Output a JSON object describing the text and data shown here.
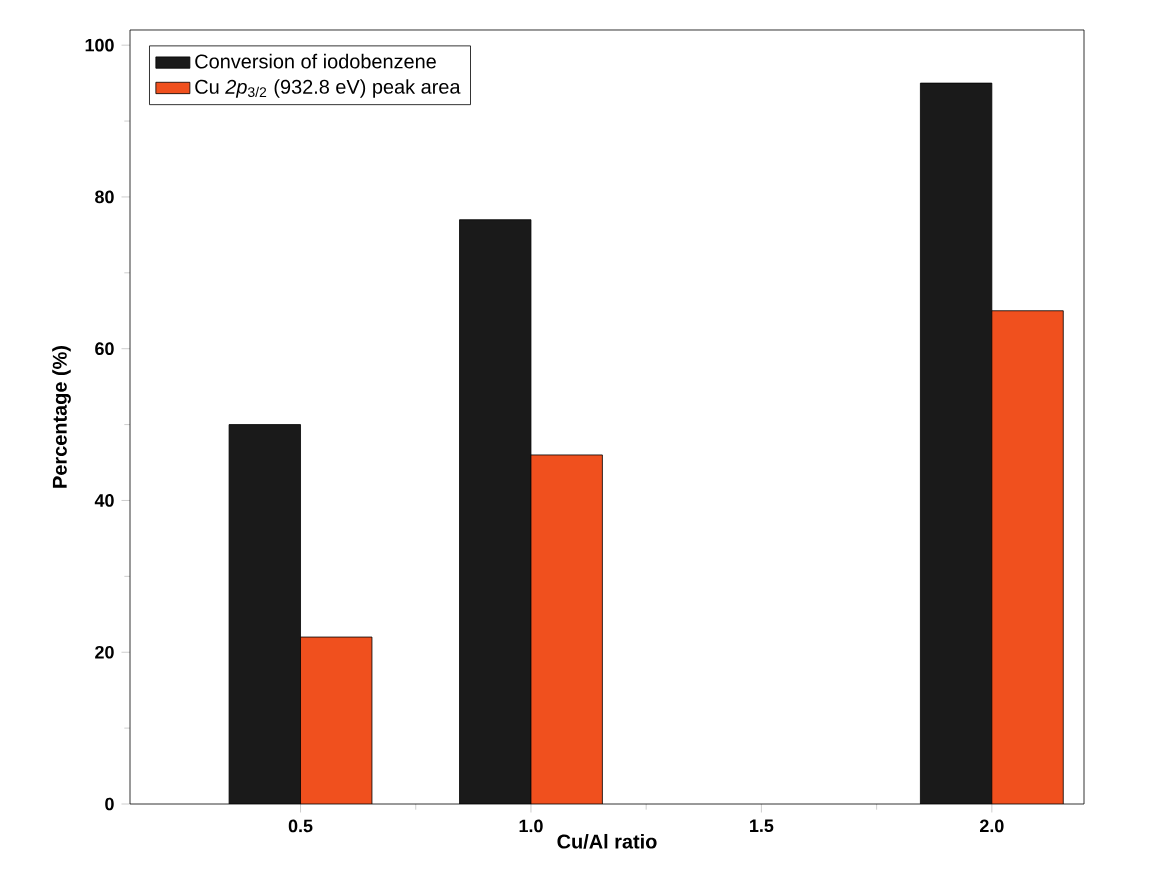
{
  "chart_data": {
    "type": "bar",
    "xlabel": "Cu/Al ratio",
    "ylabel": "Percentage (%)",
    "x": [
      0.5,
      1.0,
      2.0
    ],
    "series": [
      {
        "name": "Conversion of iodobenzene",
        "color": "#1a1a1a",
        "values": [
          50,
          77,
          95
        ]
      },
      {
        "name": "Cu *2p*$_{3/2}$ (932.8 eV) peak area",
        "color": "#f0501e",
        "values": [
          22,
          46,
          65
        ]
      }
    ],
    "xlim": [
      0.13,
      2.2
    ],
    "ylim": [
      0,
      102
    ],
    "xticks": [
      {
        "value": 0.5,
        "label": "0.5"
      },
      {
        "value": 1.0,
        "label": "1.0"
      },
      {
        "value": 1.5,
        "label": "1.5"
      },
      {
        "value": 2.0,
        "label": "2.0"
      }
    ],
    "yticks": [
      0,
      20,
      40,
      60,
      80,
      100
    ],
    "legend": "top left",
    "grid": false
  }
}
